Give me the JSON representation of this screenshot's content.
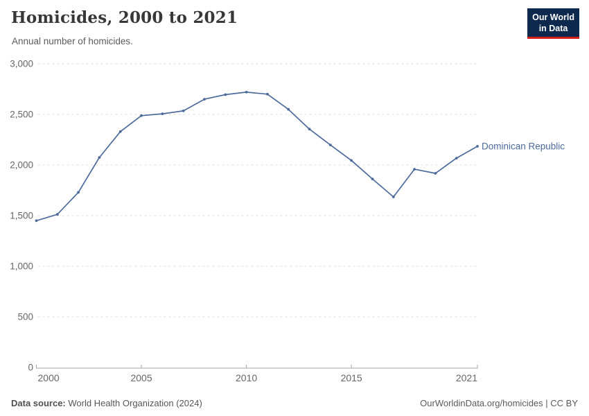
{
  "header": {
    "title": "Homicides, 2000 to 2021",
    "subtitle": "Annual number of homicides."
  },
  "logo": {
    "line1": "Our World",
    "line2": "in Data"
  },
  "footer": {
    "source_label": "Data source:",
    "source_value": " World Health Organization (2024)",
    "license": "OurWorldinData.org/homicides | CC BY"
  },
  "colors": {
    "line": "#4c6a9c",
    "grid": "#dcdcdc",
    "axis": "#a5a5a5",
    "tick_text": "#666666",
    "logo_bg": "#0d2a4e",
    "logo_red": "#d21e14"
  },
  "chart_data": {
    "type": "line",
    "title": "Homicides, 2000 to 2021",
    "subtitle": "Annual number of homicides.",
    "xlabel": "",
    "ylabel": "",
    "xlim": [
      2000,
      2021
    ],
    "ylim": [
      0,
      3000
    ],
    "x_ticks": [
      2000,
      2005,
      2010,
      2015,
      2021
    ],
    "y_ticks": [
      0,
      500,
      1000,
      1500,
      2000,
      2500,
      3000
    ],
    "grid": "dashed-horizontal",
    "legend": "end-of-line-label",
    "series": [
      {
        "name": "Dominican Republic",
        "x": [
          2000,
          2001,
          2002,
          2003,
          2004,
          2005,
          2006,
          2007,
          2008,
          2009,
          2010,
          2011,
          2012,
          2013,
          2014,
          2015,
          2016,
          2017,
          2018,
          2019,
          2020,
          2021
        ],
        "values": [
          1450,
          1512,
          1730,
          2075,
          2330,
          2488,
          2506,
          2535,
          2650,
          2695,
          2720,
          2700,
          2550,
          2355,
          2198,
          2045,
          1862,
          1685,
          1958,
          1918,
          2068,
          2185
        ]
      }
    ]
  }
}
